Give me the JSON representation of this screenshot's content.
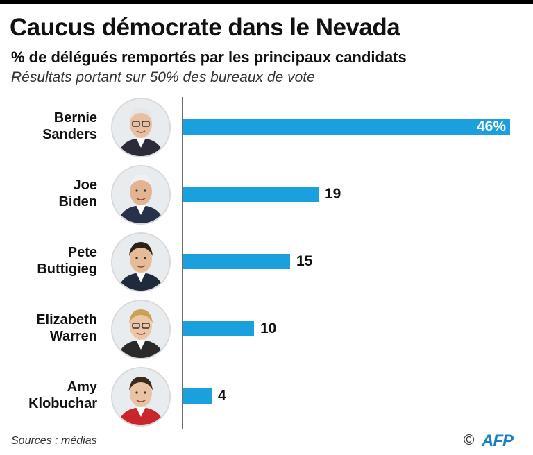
{
  "title": "Caucus démocrate dans le Nevada",
  "subtitle": "% de délégués remportés par les principaux candidats",
  "note": "Résultats portant sur 50% des bureaux de vote",
  "source": "Sources : médias",
  "copyright": "©",
  "logo": "AFP",
  "chart_data": {
    "type": "bar",
    "orientation": "horizontal",
    "title": "Caucus démocrate dans le Nevada",
    "subtitle": "% de délégués remportés par les principaux candidats",
    "categories": [
      "Bernie Sanders",
      "Joe Biden",
      "Pete Buttigieg",
      "Elizabeth Warren",
      "Amy Klobuchar"
    ],
    "name_lines": [
      [
        "Bernie",
        "Sanders"
      ],
      [
        "Joe",
        "Biden"
      ],
      [
        "Pete",
        "Buttigieg"
      ],
      [
        "Elizabeth",
        "Warren"
      ],
      [
        "Amy",
        "Klobuchar"
      ]
    ],
    "values": [
      46,
      19,
      15,
      10,
      4
    ],
    "value_labels": [
      "46%",
      "19",
      "15",
      "10",
      "4"
    ],
    "xlim": [
      0,
      46
    ],
    "grid": false,
    "legend": "none",
    "bar_color": "#1aa0dc"
  },
  "colors": {
    "bar": "#1aa0dc",
    "logo": "#1a7fc4",
    "topbar": "#000000"
  },
  "icons": [
    "portrait-bernie-sanders",
    "portrait-joe-biden",
    "portrait-pete-buttigieg",
    "portrait-elizabeth-warren",
    "portrait-amy-klobuchar"
  ]
}
